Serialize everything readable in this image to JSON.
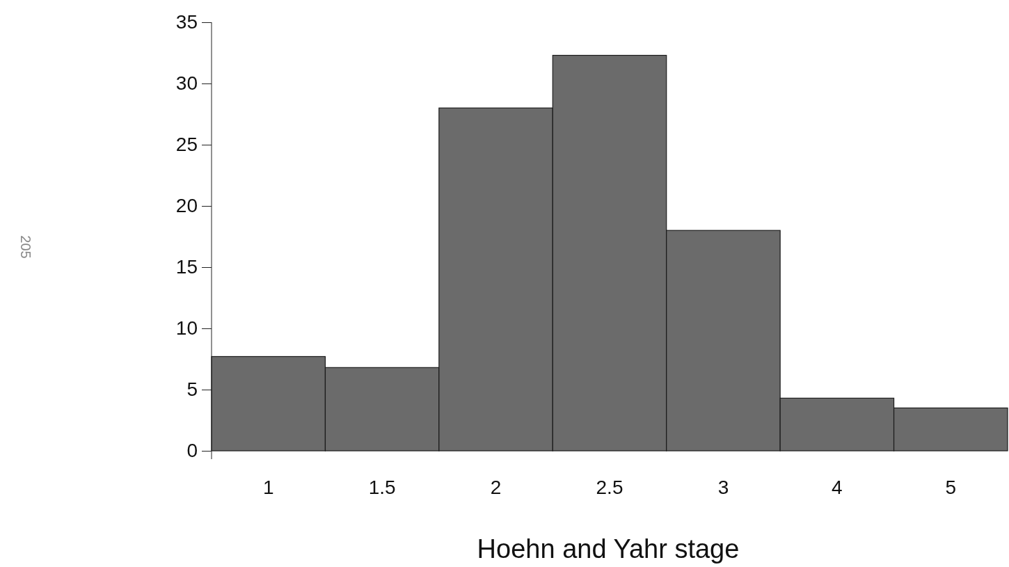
{
  "chart_data": {
    "type": "bar",
    "xlabel": "Hoehn and Yahr stage",
    "categories": [
      "1",
      "1.5",
      "2",
      "2.5",
      "3",
      "4",
      "5"
    ],
    "values": [
      7.7,
      6.8,
      28,
      32.3,
      18,
      4.3,
      3.5
    ],
    "color": "#6b6b6b",
    "ylim": [
      0,
      35
    ],
    "yticks": [
      0,
      5,
      10,
      15,
      20,
      25,
      30,
      35
    ],
    "annotations": [
      "205"
    ]
  }
}
